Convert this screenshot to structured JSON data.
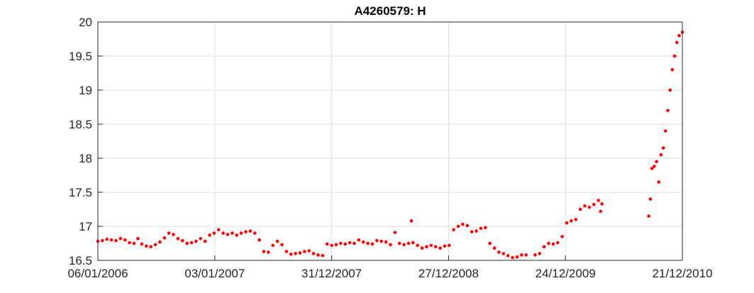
{
  "chart_data": {
    "type": "scatter",
    "title": "A4260579: H",
    "xlabel": "",
    "ylabel": "",
    "x_axis": {
      "type": "date",
      "range": [
        "2006-01-06",
        "2010-12-21"
      ],
      "ticks": [
        {
          "date": "2006-01-06",
          "label": "06/01/2006"
        },
        {
          "date": "2007-01-03",
          "label": "03/01/2007"
        },
        {
          "date": "2007-12-31",
          "label": "31/12/2007"
        },
        {
          "date": "2008-12-27",
          "label": "27/12/2008"
        },
        {
          "date": "2009-12-24",
          "label": "24/12/2009"
        },
        {
          "date": "2010-12-21",
          "label": "21/12/2010"
        }
      ]
    },
    "ylim": [
      16.5,
      20
    ],
    "yticks": [
      "16.5",
      "17",
      "17.5",
      "18",
      "18.5",
      "19",
      "19.5",
      "20"
    ],
    "grid": true,
    "series": [
      {
        "color": "#ff0000",
        "marker": "dot",
        "points": [
          [
            "2006-01-06",
            16.78
          ],
          [
            "2006-01-20",
            16.79
          ],
          [
            "2006-02-03",
            16.81
          ],
          [
            "2006-02-17",
            16.8
          ],
          [
            "2006-03-03",
            16.79
          ],
          [
            "2006-03-17",
            16.82
          ],
          [
            "2006-03-31",
            16.8
          ],
          [
            "2006-04-14",
            16.76
          ],
          [
            "2006-04-28",
            16.75
          ],
          [
            "2006-05-10",
            16.82
          ],
          [
            "2006-05-22",
            16.74
          ],
          [
            "2006-06-05",
            16.71
          ],
          [
            "2006-06-19",
            16.7
          ],
          [
            "2006-07-03",
            16.73
          ],
          [
            "2006-07-17",
            16.77
          ],
          [
            "2006-07-31",
            16.83
          ],
          [
            "2006-08-14",
            16.9
          ],
          [
            "2006-08-28",
            16.88
          ],
          [
            "2006-09-11",
            16.82
          ],
          [
            "2006-09-25",
            16.79
          ],
          [
            "2006-10-09",
            16.75
          ],
          [
            "2006-10-23",
            16.76
          ],
          [
            "2006-11-06",
            16.78
          ],
          [
            "2006-11-20",
            16.82
          ],
          [
            "2006-12-04",
            16.78
          ],
          [
            "2006-12-18",
            16.87
          ],
          [
            "2007-01-01",
            16.9
          ],
          [
            "2007-01-15",
            16.95
          ],
          [
            "2007-01-29",
            16.9
          ],
          [
            "2007-02-12",
            16.88
          ],
          [
            "2007-02-26",
            16.9
          ],
          [
            "2007-03-12",
            16.87
          ],
          [
            "2007-03-26",
            16.9
          ],
          [
            "2007-04-09",
            16.92
          ],
          [
            "2007-04-23",
            16.93
          ],
          [
            "2007-05-07",
            16.9
          ],
          [
            "2007-05-21",
            16.8
          ],
          [
            "2007-06-04",
            16.63
          ],
          [
            "2007-06-18",
            16.62
          ],
          [
            "2007-07-02",
            16.72
          ],
          [
            "2007-07-16",
            16.78
          ],
          [
            "2007-07-30",
            16.73
          ],
          [
            "2007-08-13",
            16.63
          ],
          [
            "2007-08-27",
            16.59
          ],
          [
            "2007-09-10",
            16.6
          ],
          [
            "2007-09-24",
            16.61
          ],
          [
            "2007-10-08",
            16.63
          ],
          [
            "2007-10-22",
            16.64
          ],
          [
            "2007-11-05",
            16.6
          ],
          [
            "2007-11-19",
            16.58
          ],
          [
            "2007-12-03",
            16.57
          ],
          [
            "2007-12-17",
            16.74
          ],
          [
            "2007-12-31",
            16.72
          ],
          [
            "2008-01-14",
            16.73
          ],
          [
            "2008-01-28",
            16.75
          ],
          [
            "2008-02-11",
            16.74
          ],
          [
            "2008-02-25",
            16.76
          ],
          [
            "2008-03-10",
            16.75
          ],
          [
            "2008-03-24",
            16.8
          ],
          [
            "2008-04-07",
            16.77
          ],
          [
            "2008-04-21",
            16.75
          ],
          [
            "2008-05-05",
            16.74
          ],
          [
            "2008-05-19",
            16.79
          ],
          [
            "2008-06-02",
            16.78
          ],
          [
            "2008-06-16",
            16.77
          ],
          [
            "2008-06-30",
            16.73
          ],
          [
            "2008-07-14",
            16.91
          ],
          [
            "2008-07-28",
            16.75
          ],
          [
            "2008-08-11",
            16.73
          ],
          [
            "2008-08-25",
            16.75
          ],
          [
            "2008-09-03",
            17.08
          ],
          [
            "2008-09-08",
            16.76
          ],
          [
            "2008-09-22",
            16.72
          ],
          [
            "2008-10-06",
            16.68
          ],
          [
            "2008-10-20",
            16.7
          ],
          [
            "2008-11-03",
            16.72
          ],
          [
            "2008-11-17",
            16.7
          ],
          [
            "2008-12-01",
            16.68
          ],
          [
            "2008-12-15",
            16.71
          ],
          [
            "2008-12-29",
            16.72
          ],
          [
            "2009-01-12",
            16.95
          ],
          [
            "2009-01-26",
            17.0
          ],
          [
            "2009-02-09",
            17.03
          ],
          [
            "2009-02-23",
            17.01
          ],
          [
            "2009-03-09",
            16.92
          ],
          [
            "2009-03-23",
            16.93
          ],
          [
            "2009-04-06",
            16.97
          ],
          [
            "2009-04-20",
            16.98
          ],
          [
            "2009-05-04",
            16.75
          ],
          [
            "2009-05-18",
            16.68
          ],
          [
            "2009-06-01",
            16.62
          ],
          [
            "2009-06-15",
            16.6
          ],
          [
            "2009-06-29",
            16.57
          ],
          [
            "2009-07-13",
            16.54
          ],
          [
            "2009-07-27",
            16.55
          ],
          [
            "2009-08-10",
            16.58
          ],
          [
            "2009-08-24",
            16.58
          ],
          [
            "2009-09-21",
            16.58
          ],
          [
            "2009-10-05",
            16.6
          ],
          [
            "2009-10-19",
            16.7
          ],
          [
            "2009-11-02",
            16.75
          ],
          [
            "2009-11-16",
            16.74
          ],
          [
            "2009-11-30",
            16.76
          ],
          [
            "2009-12-14",
            16.85
          ],
          [
            "2009-12-28",
            17.05
          ],
          [
            "2010-01-11",
            17.08
          ],
          [
            "2010-01-25",
            17.1
          ],
          [
            "2010-02-08",
            17.25
          ],
          [
            "2010-02-22",
            17.3
          ],
          [
            "2010-03-08",
            17.28
          ],
          [
            "2010-03-22",
            17.32
          ],
          [
            "2010-04-05",
            17.38
          ],
          [
            "2010-04-12",
            17.22
          ],
          [
            "2010-04-16",
            17.33
          ],
          [
            "2010-09-08",
            17.15
          ],
          [
            "2010-09-13",
            17.4
          ],
          [
            "2010-09-18",
            17.85
          ],
          [
            "2010-09-25",
            17.88
          ],
          [
            "2010-10-02",
            17.95
          ],
          [
            "2010-10-09",
            17.65
          ],
          [
            "2010-10-16",
            18.05
          ],
          [
            "2010-10-23",
            18.15
          ],
          [
            "2010-10-30",
            18.4
          ],
          [
            "2010-11-06",
            18.7
          ],
          [
            "2010-11-13",
            19.0
          ],
          [
            "2010-11-20",
            19.3
          ],
          [
            "2010-11-27",
            19.5
          ],
          [
            "2010-12-04",
            19.7
          ],
          [
            "2010-12-11",
            19.8
          ],
          [
            "2010-12-21",
            19.85
          ]
        ]
      }
    ]
  }
}
